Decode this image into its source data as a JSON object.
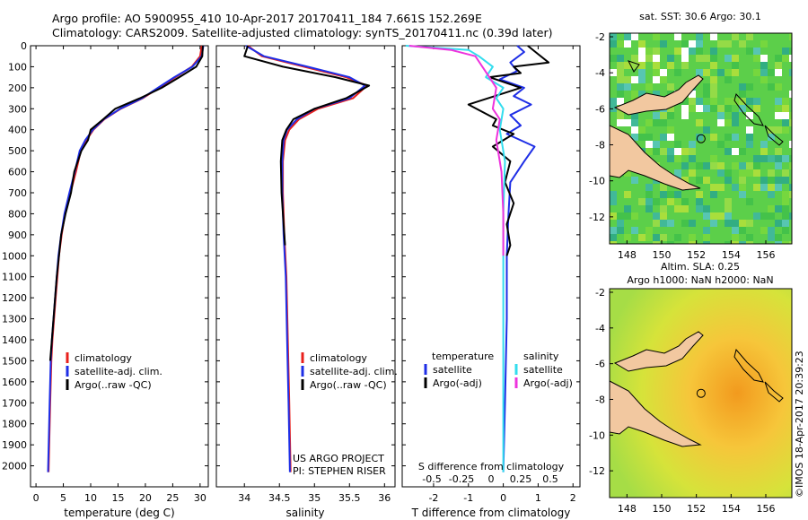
{
  "header": {
    "line1": "Argo profile: AO 5900955_410 10-Apr-2017 20170411_184 7.661S 152.269E",
    "line2": "Climatology: CARS2009. Satellite-adjusted climatology: synTS_20170411.nc (0.39d later)"
  },
  "colors": {
    "clim": "#e8201c",
    "sat": "#1e2ee6",
    "argo": "#000000",
    "sal_sat": "#33ddee",
    "sal_argo": "#ee33dd",
    "land": "#f2c8a0"
  },
  "depth_axis": {
    "min": 0,
    "max": 2100,
    "ticks": [
      0,
      100,
      200,
      300,
      400,
      500,
      600,
      700,
      800,
      900,
      1000,
      1100,
      1200,
      1300,
      1400,
      1500,
      1600,
      1700,
      1800,
      1900,
      2000
    ]
  },
  "chart_data": [
    {
      "id": "temperature",
      "type": "line",
      "xlabel": "temperature (deg C)",
      "xlim": [
        -1,
        31.5
      ],
      "xticks": [
        0,
        5,
        10,
        15,
        20,
        25,
        30
      ],
      "ylabel": "depth",
      "ylim": [
        2100,
        0
      ],
      "legend": [
        "climatology",
        "satellite-adj. clim.",
        "Argo(..raw -QC)"
      ],
      "series": [
        {
          "name": "climatology",
          "color_key": "clim",
          "x": [
            30.3,
            30.0,
            28.5,
            25.5,
            22.5,
            19.5,
            15.5,
            12.5,
            10.5,
            9.2,
            8.2,
            7.3,
            6.3,
            5.3,
            4.7,
            4.2,
            3.9,
            3.6,
            3.3,
            3.0,
            2.8,
            2.6,
            2.3
          ],
          "y": [
            0,
            50,
            100,
            150,
            200,
            250,
            300,
            350,
            400,
            450,
            500,
            600,
            700,
            800,
            900,
            1000,
            1100,
            1200,
            1300,
            1400,
            1500,
            1700,
            2030
          ]
        },
        {
          "name": "satellite-adj. clim.",
          "color_key": "sat",
          "x": [
            30.6,
            30.3,
            28.6,
            25.3,
            22.3,
            19.4,
            15.4,
            12.4,
            10.4,
            9.0,
            8.0,
            7.1,
            6.1,
            5.2,
            4.6,
            4.1,
            3.8,
            3.5,
            3.2,
            2.9,
            2.7,
            2.5,
            2.2
          ],
          "y": [
            0,
            50,
            100,
            150,
            200,
            250,
            300,
            350,
            400,
            450,
            500,
            600,
            700,
            800,
            900,
            1000,
            1100,
            1200,
            1300,
            1400,
            1500,
            1700,
            2030
          ]
        },
        {
          "name": "Argo(..raw -QC)",
          "color_key": "argo",
          "x": [
            30.5,
            30.4,
            29.3,
            26.2,
            23.0,
            19.0,
            14.5,
            12.3,
            10.0,
            9.5,
            8.3,
            7.0,
            6.4,
            5.4,
            4.6,
            4.2,
            3.8,
            3.5,
            3.2,
            2.9,
            2.6
          ],
          "y": [
            0,
            50,
            100,
            150,
            200,
            250,
            300,
            350,
            400,
            450,
            500,
            600,
            700,
            800,
            900,
            1000,
            1100,
            1200,
            1300,
            1400,
            1500
          ]
        }
      ]
    },
    {
      "id": "salinity",
      "type": "line",
      "xlabel": "salinity",
      "xlim": [
        33.6,
        36.15
      ],
      "xticks": [
        34,
        34.5,
        35,
        35.5,
        36
      ],
      "ylim": [
        2100,
        0
      ],
      "legend": [
        "climatology",
        "satellite-adj. clim.",
        "Argo(..raw -QC)"
      ],
      "credits": [
        "US ARGO PROJECT",
        "PI: STEPHEN RISER"
      ],
      "series": [
        {
          "name": "climatology",
          "color_key": "clim",
          "x": [
            34.05,
            34.25,
            34.85,
            35.45,
            35.75,
            35.55,
            35.05,
            34.78,
            34.64,
            34.58,
            34.55,
            34.55,
            34.57,
            34.6,
            34.62,
            34.64,
            34.66
          ],
          "y": [
            0,
            50,
            100,
            150,
            190,
            250,
            300,
            350,
            400,
            450,
            550,
            700,
            900,
            1100,
            1400,
            1700,
            2030
          ]
        },
        {
          "name": "satellite-adj. clim.",
          "color_key": "sat",
          "x": [
            34.02,
            34.28,
            34.9,
            35.5,
            35.72,
            35.5,
            35.0,
            34.75,
            34.61,
            34.56,
            34.54,
            34.54,
            34.56,
            34.59,
            34.61,
            34.63,
            34.65
          ],
          "y": [
            0,
            50,
            100,
            150,
            190,
            250,
            300,
            350,
            400,
            450,
            550,
            700,
            900,
            1100,
            1400,
            1700,
            2030
          ]
        },
        {
          "name": "Argo(..raw -QC)",
          "color_key": "argo",
          "x": [
            34.05,
            34.0,
            34.55,
            35.3,
            35.78,
            35.45,
            35.0,
            34.7,
            34.6,
            34.54,
            34.52,
            34.53,
            34.56,
            34.58
          ],
          "y": [
            0,
            50,
            100,
            150,
            190,
            250,
            300,
            350,
            400,
            450,
            550,
            700,
            850,
            950
          ]
        }
      ]
    },
    {
      "id": "differences",
      "type": "line",
      "xlabel": "T difference from climatology",
      "xlabel_top": "S difference from climatology",
      "xlim": [
        -2.9,
        2.2
      ],
      "xticks": [
        -2,
        -1,
        0,
        1,
        2
      ],
      "s_ticks": [
        "-0.5",
        "-0.25",
        "0",
        "0.25",
        "0.5"
      ],
      "ylim": [
        2100,
        0
      ],
      "legend_headers": [
        "temperature",
        "salinity"
      ],
      "legend": [
        "satellite",
        "Argo(-adj)",
        "satellite",
        "Argo(-adj)"
      ],
      "series": [
        {
          "name": "T satellite",
          "color_key": "sat",
          "x": [
            0.4,
            0.6,
            0.2,
            0.4,
            -0.1,
            0.6,
            0.3,
            0.8,
            0.2,
            0.5,
            0.1,
            0.9,
            0.6,
            0.2,
            0.15,
            0.1,
            0.1,
            0.05,
            0.0
          ],
          "y": [
            0,
            30,
            80,
            120,
            160,
            200,
            240,
            280,
            330,
            380,
            420,
            480,
            550,
            650,
            800,
            1000,
            1300,
            1700,
            2030
          ]
        },
        {
          "name": "T Argo(-adj)",
          "color_key": "argo",
          "x": [
            0.7,
            1.0,
            1.3,
            0.3,
            0.5,
            -0.4,
            0.5,
            -1.0,
            -0.2,
            -0.3,
            0.3,
            -0.3,
            0.2,
            0.05,
            0.3,
            0.1,
            0.2,
            0.1
          ],
          "y": [
            0,
            40,
            80,
            100,
            130,
            150,
            200,
            280,
            350,
            380,
            420,
            480,
            550,
            650,
            750,
            850,
            950,
            1000
          ]
        },
        {
          "name": "S satellite",
          "color_key": "sal_sat",
          "x": [
            -2.8,
            -1.0,
            -0.7,
            -0.3,
            -0.5,
            0.0,
            -0.2,
            0.0,
            -0.1,
            0.05,
            0.0,
            0.0,
            0.0
          ],
          "y": [
            0,
            20,
            50,
            100,
            150,
            200,
            250,
            300,
            400,
            550,
            800,
            1300,
            2030
          ]
        },
        {
          "name": "S Argo(-adj)",
          "color_key": "sal_argo",
          "x": [
            -2.7,
            -1.5,
            -0.8,
            -0.6,
            -0.4,
            -0.2,
            -0.3,
            -0.1,
            -0.2,
            -0.05,
            0.0,
            0.0
          ],
          "y": [
            0,
            20,
            50,
            100,
            150,
            200,
            300,
            350,
            450,
            600,
            800,
            1000
          ]
        }
      ]
    },
    {
      "id": "sst-map",
      "type": "heatmap",
      "title": "sat. SST: 30.6 Argo: 30.1",
      "xlim": [
        147,
        157.5
      ],
      "ylim": [
        -13.5,
        -1.8
      ],
      "xticks": [
        "148",
        "150",
        "152",
        "154",
        "156"
      ],
      "yticks": [
        "-2",
        "-4",
        "-6",
        "-8",
        "-10",
        "-12"
      ],
      "marker": {
        "lon": 152.269,
        "lat": -7.661
      }
    },
    {
      "id": "sla-map",
      "type": "heatmap",
      "title": "Altim. SLA: 0.25",
      "subtitle": "Argo h1000: NaN h2000: NaN",
      "xlim": [
        147,
        157.5
      ],
      "ylim": [
        -13.5,
        -1.8
      ],
      "xticks": [
        "148",
        "150",
        "152",
        "154",
        "156"
      ],
      "yticks": [
        "-2",
        "-4",
        "-6",
        "-8",
        "-10",
        "-12"
      ],
      "marker": {
        "lon": 152.269,
        "lat": -7.661
      }
    }
  ],
  "footer": {
    "imos_stamp": "©IMOS 18-Apr-2017 20:39:23"
  }
}
